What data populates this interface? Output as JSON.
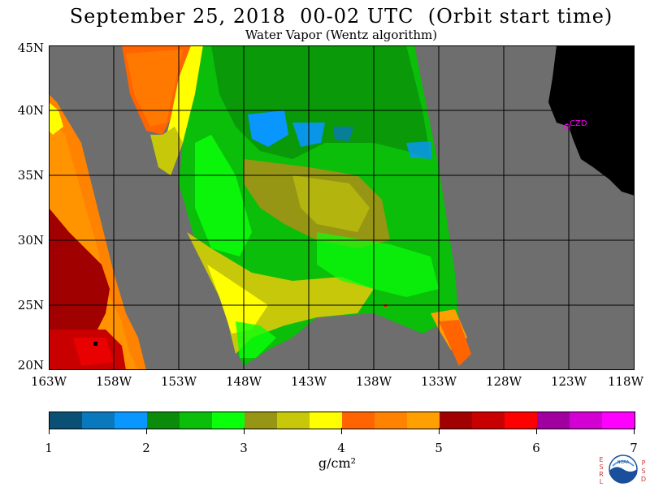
{
  "title": "September 25, 2018  00-02 UTC  (Orbit start time)",
  "subtitle": "Water Vapor (Wentz algorithm)",
  "map": {
    "lat_labels": [
      "45N",
      "40N",
      "35N",
      "30N",
      "25N",
      "20N"
    ],
    "lon_labels": [
      "163W",
      "158W",
      "153W",
      "148W",
      "143W",
      "138W",
      "133W",
      "128W",
      "123W",
      "118W"
    ],
    "station_label": "CZD",
    "colors": {
      "no_data": "#6e6e6e",
      "land": "#000000",
      "station": "#ff00ff"
    }
  },
  "colorbar": {
    "colors": [
      "#0a5075",
      "#0a78bc",
      "#0a96ff",
      "#0a8c0a",
      "#0abe0a",
      "#0aff0a",
      "#969614",
      "#c8c80a",
      "#ffff00",
      "#ff6400",
      "#ff8200",
      "#ffa000",
      "#a00000",
      "#c80000",
      "#ff0000",
      "#a000a0",
      "#d200d2",
      "#ff00ff"
    ],
    "tick_labels": [
      "1",
      "2",
      "3",
      "4",
      "5",
      "6",
      "7"
    ],
    "units": "g/cm²"
  },
  "logo": {
    "left_letters": [
      "E",
      "S",
      "R",
      "L"
    ],
    "right_letters": [
      "P",
      "S",
      "D"
    ],
    "emblem_text": "NOAA"
  }
}
